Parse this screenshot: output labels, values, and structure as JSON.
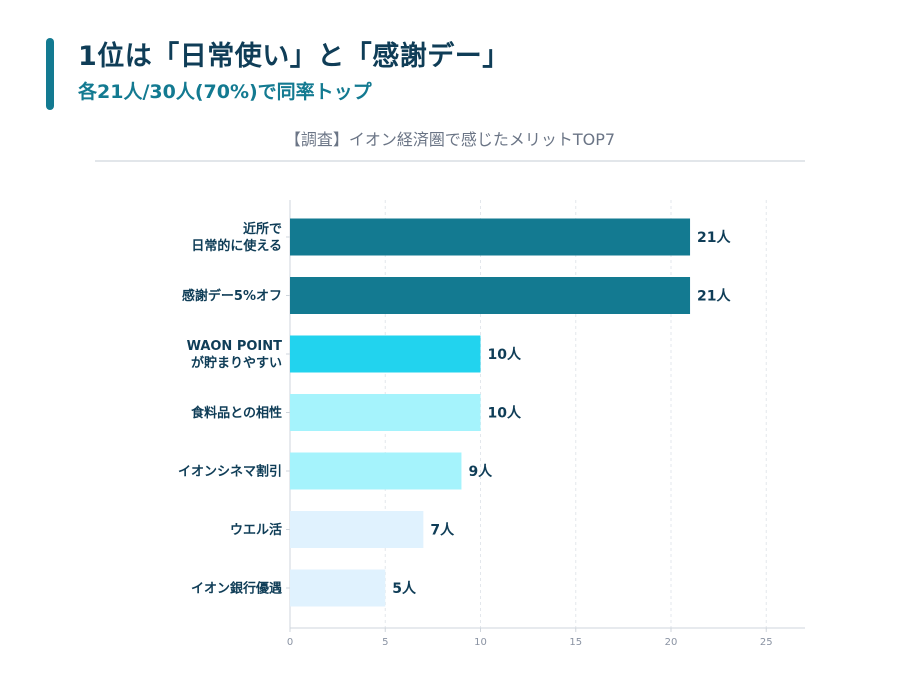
{
  "header": {
    "title": "1位は「日常使い」と「感謝デー」",
    "subtitle": "各21人/30人(70%)で同率トップ"
  },
  "chart_data": {
    "type": "bar",
    "orientation": "horizontal",
    "title": "【調査】イオン経済圏で感じたメリットTOP7",
    "categories": [
      [
        "近所で",
        "日常的に使える"
      ],
      [
        "感謝デー5%オフ"
      ],
      [
        "WAON POINT",
        "が貯まりやすい"
      ],
      [
        "食料品との相性"
      ],
      [
        "イオンシネマ割引"
      ],
      [
        "ウエル活"
      ],
      [
        "イオン銀行優遇"
      ]
    ],
    "values": [
      21,
      21,
      10,
      10,
      9,
      7,
      5
    ],
    "value_labels": [
      "21人",
      "21人",
      "10人",
      "10人",
      "9人",
      "7人",
      "5人"
    ],
    "colors": [
      "#137a91",
      "#137a91",
      "#22d3ee",
      "#a5f3fc",
      "#a5f3fc",
      "#e0f2fe",
      "#e0f2fe"
    ],
    "xlim": [
      0,
      27
    ],
    "xticks": [
      0,
      5,
      10,
      15,
      20,
      25
    ],
    "grid": "vertical-dashed",
    "xlabel": "",
    "ylabel": ""
  }
}
